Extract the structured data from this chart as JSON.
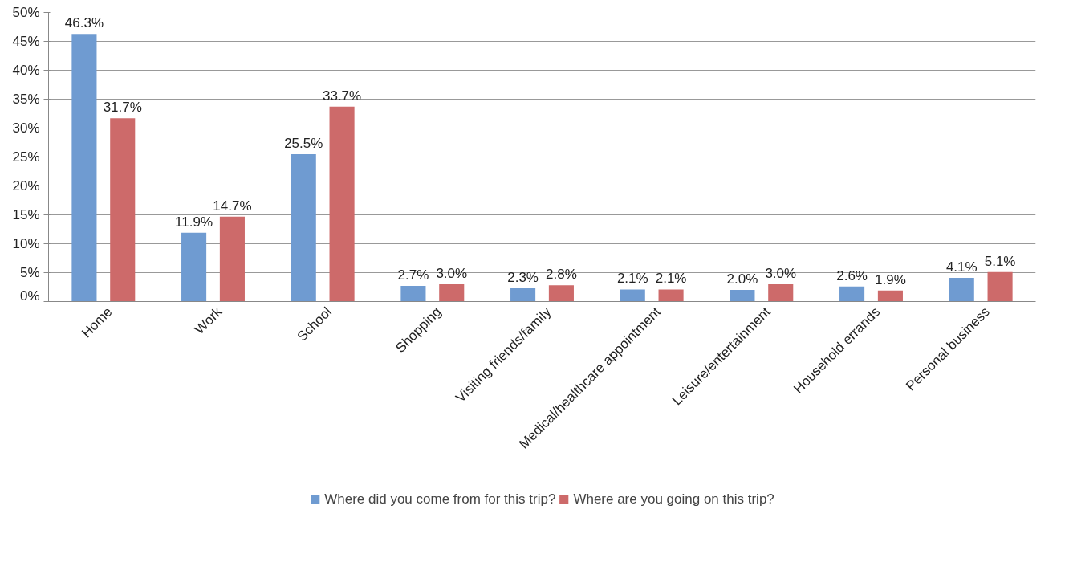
{
  "chart_data": {
    "type": "bar",
    "categories": [
      "Home",
      "Work",
      "School",
      "Shopping",
      "Visiting friends/family",
      "Medical/healthcare appointment",
      "Leisure/entertainment",
      "Household errands",
      "Personal business"
    ],
    "series": [
      {
        "name": "Where did you come from for this trip?",
        "color": "#6f9bd1",
        "values": [
          46.3,
          11.9,
          25.5,
          2.7,
          2.3,
          2.1,
          2.0,
          2.6,
          4.1
        ],
        "value_labels": [
          "46.3%",
          "11.9%",
          "25.5%",
          "2.7%",
          "2.3%",
          "2.1%",
          "2.0%",
          "2.6%",
          "4.1%"
        ]
      },
      {
        "name": "Where are you going on this trip?",
        "color": "#cd6a6a",
        "values": [
          31.7,
          14.7,
          33.7,
          3.0,
          2.8,
          2.1,
          3.0,
          1.9,
          5.1
        ],
        "value_labels": [
          "31.7%",
          "14.7%",
          "33.7%",
          "3.0%",
          "2.8%",
          "2.1%",
          "3.0%",
          "1.9%",
          "5.1%"
        ]
      }
    ],
    "ylim": [
      0,
      50
    ],
    "yticks": [
      {
        "value": 0,
        "label": "0%"
      },
      {
        "value": 5,
        "label": "5%"
      },
      {
        "value": 10,
        "label": "10%"
      },
      {
        "value": 15,
        "label": "15%"
      },
      {
        "value": 20,
        "label": "20%"
      },
      {
        "value": 25,
        "label": "25%"
      },
      {
        "value": 30,
        "label": "30%"
      },
      {
        "value": 35,
        "label": "35%"
      },
      {
        "value": 40,
        "label": "40%"
      },
      {
        "value": 45,
        "label": "45%"
      },
      {
        "value": 50,
        "label": "50%"
      }
    ],
    "grid": "y",
    "legend": "bottom"
  }
}
